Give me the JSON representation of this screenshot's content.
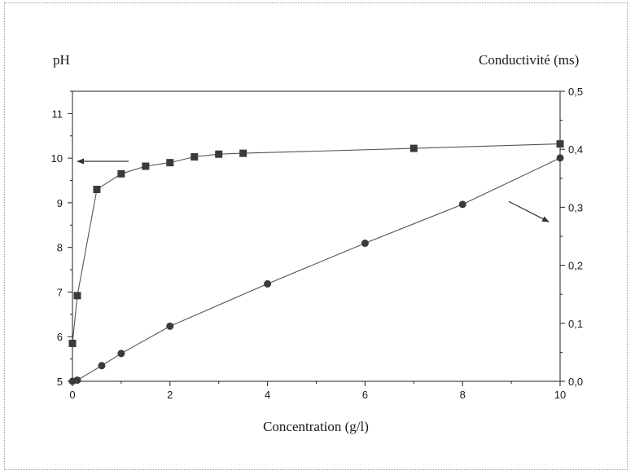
{
  "chart_data": {
    "type": "line",
    "xlabel": "Concentration (g/l)",
    "ylabel_left": "pH",
    "ylabel_right": "Conductivité (ms)",
    "xlim": [
      0,
      10
    ],
    "ylim_left": [
      5,
      11.5
    ],
    "ylim_right": [
      0.0,
      0.5
    ],
    "x_ticks": [
      "0",
      "2",
      "4",
      "6",
      "8",
      "10"
    ],
    "y_left_ticks": [
      "5",
      "6",
      "7",
      "8",
      "9",
      "10",
      "11"
    ],
    "y_right_ticks": [
      "0,0",
      "0,1",
      "0,2",
      "0,3",
      "0,4",
      "0,5"
    ],
    "grid": false,
    "series": [
      {
        "axis": "left",
        "marker": "square",
        "x": [
          0,
          0.1,
          0.5,
          1,
          1.5,
          2,
          2.5,
          3,
          3.5,
          7,
          10
        ],
        "values": [
          5.85,
          6.92,
          9.3,
          9.65,
          9.82,
          9.9,
          10.03,
          10.09,
          10.11,
          10.22,
          10.32
        ]
      },
      {
        "axis": "right",
        "marker": "circle",
        "x": [
          0,
          0.1,
          0.6,
          1,
          2,
          4,
          6,
          8,
          10
        ],
        "values": [
          0.0,
          0.002,
          0.027,
          0.048,
          0.095,
          0.168,
          0.238,
          0.305,
          0.385
        ]
      }
    ],
    "annotations": [
      {
        "type": "arrow",
        "points_to": "left",
        "series": 0
      },
      {
        "type": "arrow",
        "points_to": "right",
        "series": 1
      }
    ]
  }
}
